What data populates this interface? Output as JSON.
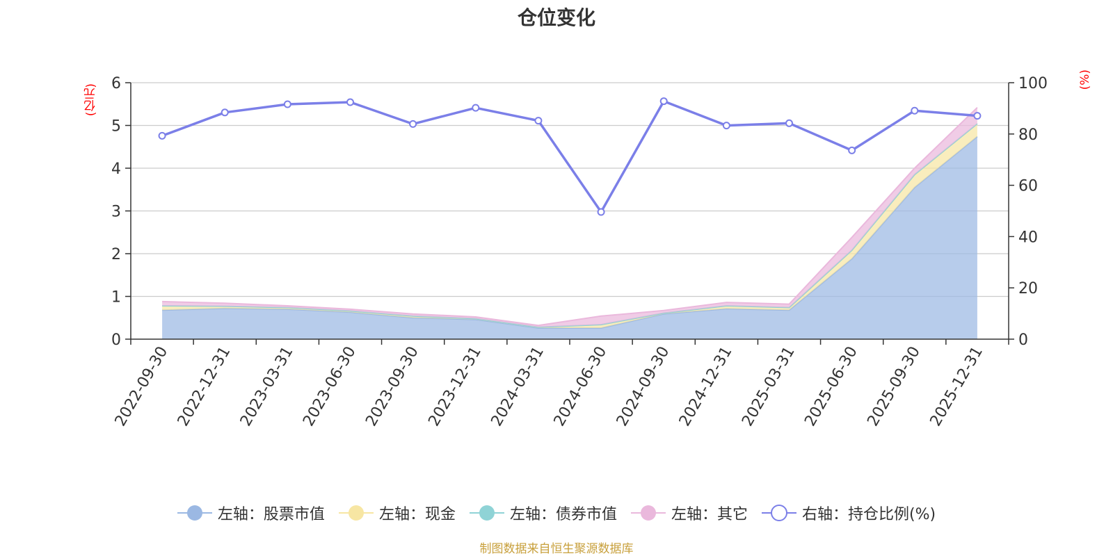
{
  "title": "仓位变化",
  "left_unit": "(亿元)",
  "right_unit": "(%)",
  "source": "制图数据来自恒生聚源数据库",
  "colors": {
    "stock": "#9bb8e3",
    "cash": "#f7e6a3",
    "bond": "#8fd3d6",
    "other": "#eab8dc",
    "ratio": "#7b7fe8",
    "grid": "#cccccc",
    "axis": "#333333"
  },
  "legend": [
    {
      "label": "左轴：股票市值",
      "key": "stock",
      "marker": "circle"
    },
    {
      "label": "左轴：现金",
      "key": "cash",
      "marker": "circle"
    },
    {
      "label": "左轴：债券市值",
      "key": "bond",
      "marker": "circle"
    },
    {
      "label": "左轴：其它",
      "key": "other",
      "marker": "circle"
    },
    {
      "label": "右轴：持仓比例(%)",
      "key": "ratio",
      "marker": "hollow-circle"
    }
  ],
  "chart_data": {
    "type": "area",
    "title": "仓位变化",
    "categories": [
      "2022-09-30",
      "2022-12-31",
      "2023-03-31",
      "2023-06-30",
      "2023-09-30",
      "2023-12-31",
      "2024-03-31",
      "2024-06-30",
      "2024-09-30",
      "2024-12-31",
      "2025-03-31",
      "2025-06-30",
      "2025-09-30",
      "2025-12-31"
    ],
    "left_axis": {
      "unit": "(亿元)",
      "ylim": [
        0,
        6
      ],
      "ticks": [
        0,
        1,
        2,
        3,
        4,
        5,
        6
      ]
    },
    "right_axis": {
      "unit": "(%)",
      "ylim": [
        0,
        100
      ],
      "ticks": [
        0,
        20,
        40,
        60,
        80,
        100
      ]
    },
    "series": [
      {
        "name": "左轴：股票市值",
        "axis": "left",
        "stacked": true,
        "values": [
          0.68,
          0.72,
          0.7,
          0.63,
          0.5,
          0.46,
          0.26,
          0.26,
          0.59,
          0.71,
          0.68,
          1.88,
          3.55,
          4.74
        ]
      },
      {
        "name": "左轴：现金",
        "axis": "left",
        "stacked": true,
        "values": [
          0.1,
          0.05,
          0.04,
          0.03,
          0.04,
          0.02,
          0.02,
          0.08,
          0.02,
          0.07,
          0.06,
          0.2,
          0.3,
          0.3
        ]
      },
      {
        "name": "左轴：债券市值",
        "axis": "left",
        "stacked": true,
        "values": [
          0,
          0,
          0,
          0,
          0,
          0,
          0,
          0,
          0,
          0,
          0,
          0,
          0,
          0
        ]
      },
      {
        "name": "左轴：其它",
        "axis": "left",
        "stacked": true,
        "values": [
          0.1,
          0.07,
          0.04,
          0.04,
          0.05,
          0.04,
          0.04,
          0.2,
          0.06,
          0.08,
          0.08,
          0.3,
          0.15,
          0.38
        ]
      },
      {
        "name": "右轴：持仓比例(%)",
        "axis": "right",
        "type": "line",
        "values": [
          79.3,
          88.4,
          91.6,
          92.4,
          83.9,
          90.2,
          85.2,
          49.6,
          92.8,
          83.3,
          84.2,
          73.6,
          89.1,
          87.1
        ]
      }
    ],
    "grid": true,
    "legend_position": "bottom"
  }
}
